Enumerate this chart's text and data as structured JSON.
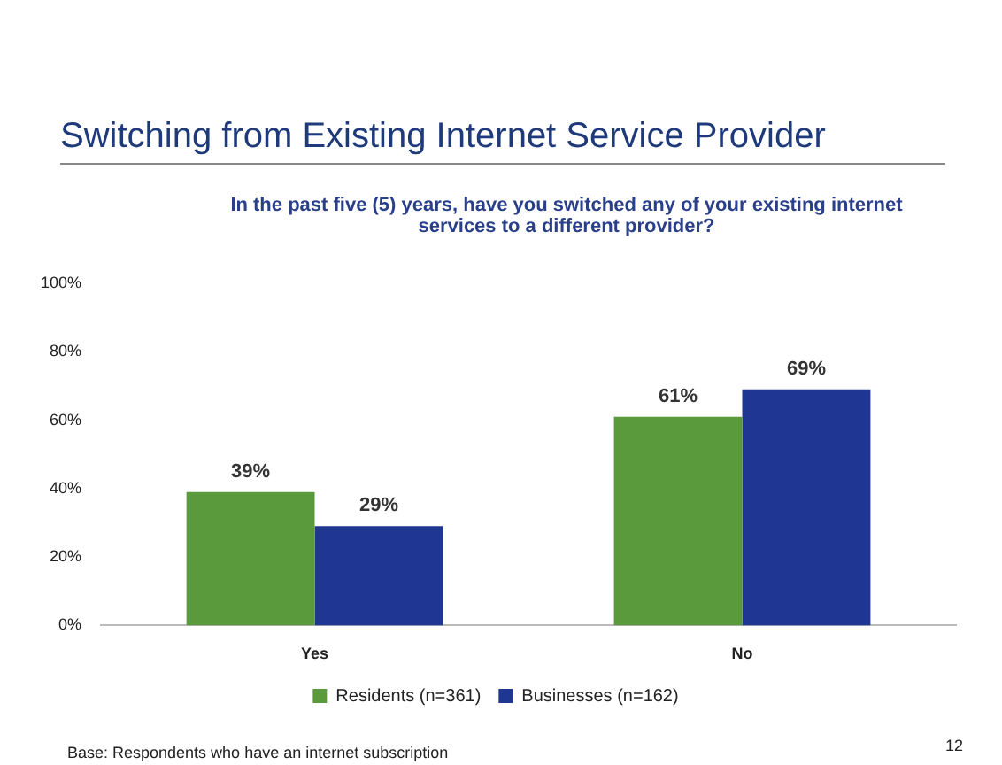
{
  "chart_data": {
    "type": "bar",
    "title": "Switching from Existing Internet Service Provider",
    "subtitle": "In the past five (5) years, have you switched any of your existing internet services to a different provider?",
    "categories": [
      "Yes",
      "No"
    ],
    "series": [
      {
        "name": "Residents (n=361)",
        "color": "#5b9a3c",
        "values": [
          39,
          61
        ],
        "value_labels": [
          "39%",
          "61%"
        ]
      },
      {
        "name": "Businesses (n=162)",
        "color": "#1f3693",
        "values": [
          29,
          69
        ],
        "value_labels": [
          "29%",
          "69%"
        ]
      }
    ],
    "ylim": [
      0,
      100
    ],
    "yticks": [
      {
        "value": 0,
        "label": "0%"
      },
      {
        "value": 20,
        "label": "20%"
      },
      {
        "value": 40,
        "label": "40%"
      },
      {
        "value": 60,
        "label": "60%"
      },
      {
        "value": 80,
        "label": "80%"
      },
      {
        "value": 100,
        "label": "100%"
      }
    ],
    "legend": "bottom",
    "annotations": [
      "Base: Respondents who have an internet subscription",
      "12"
    ]
  }
}
